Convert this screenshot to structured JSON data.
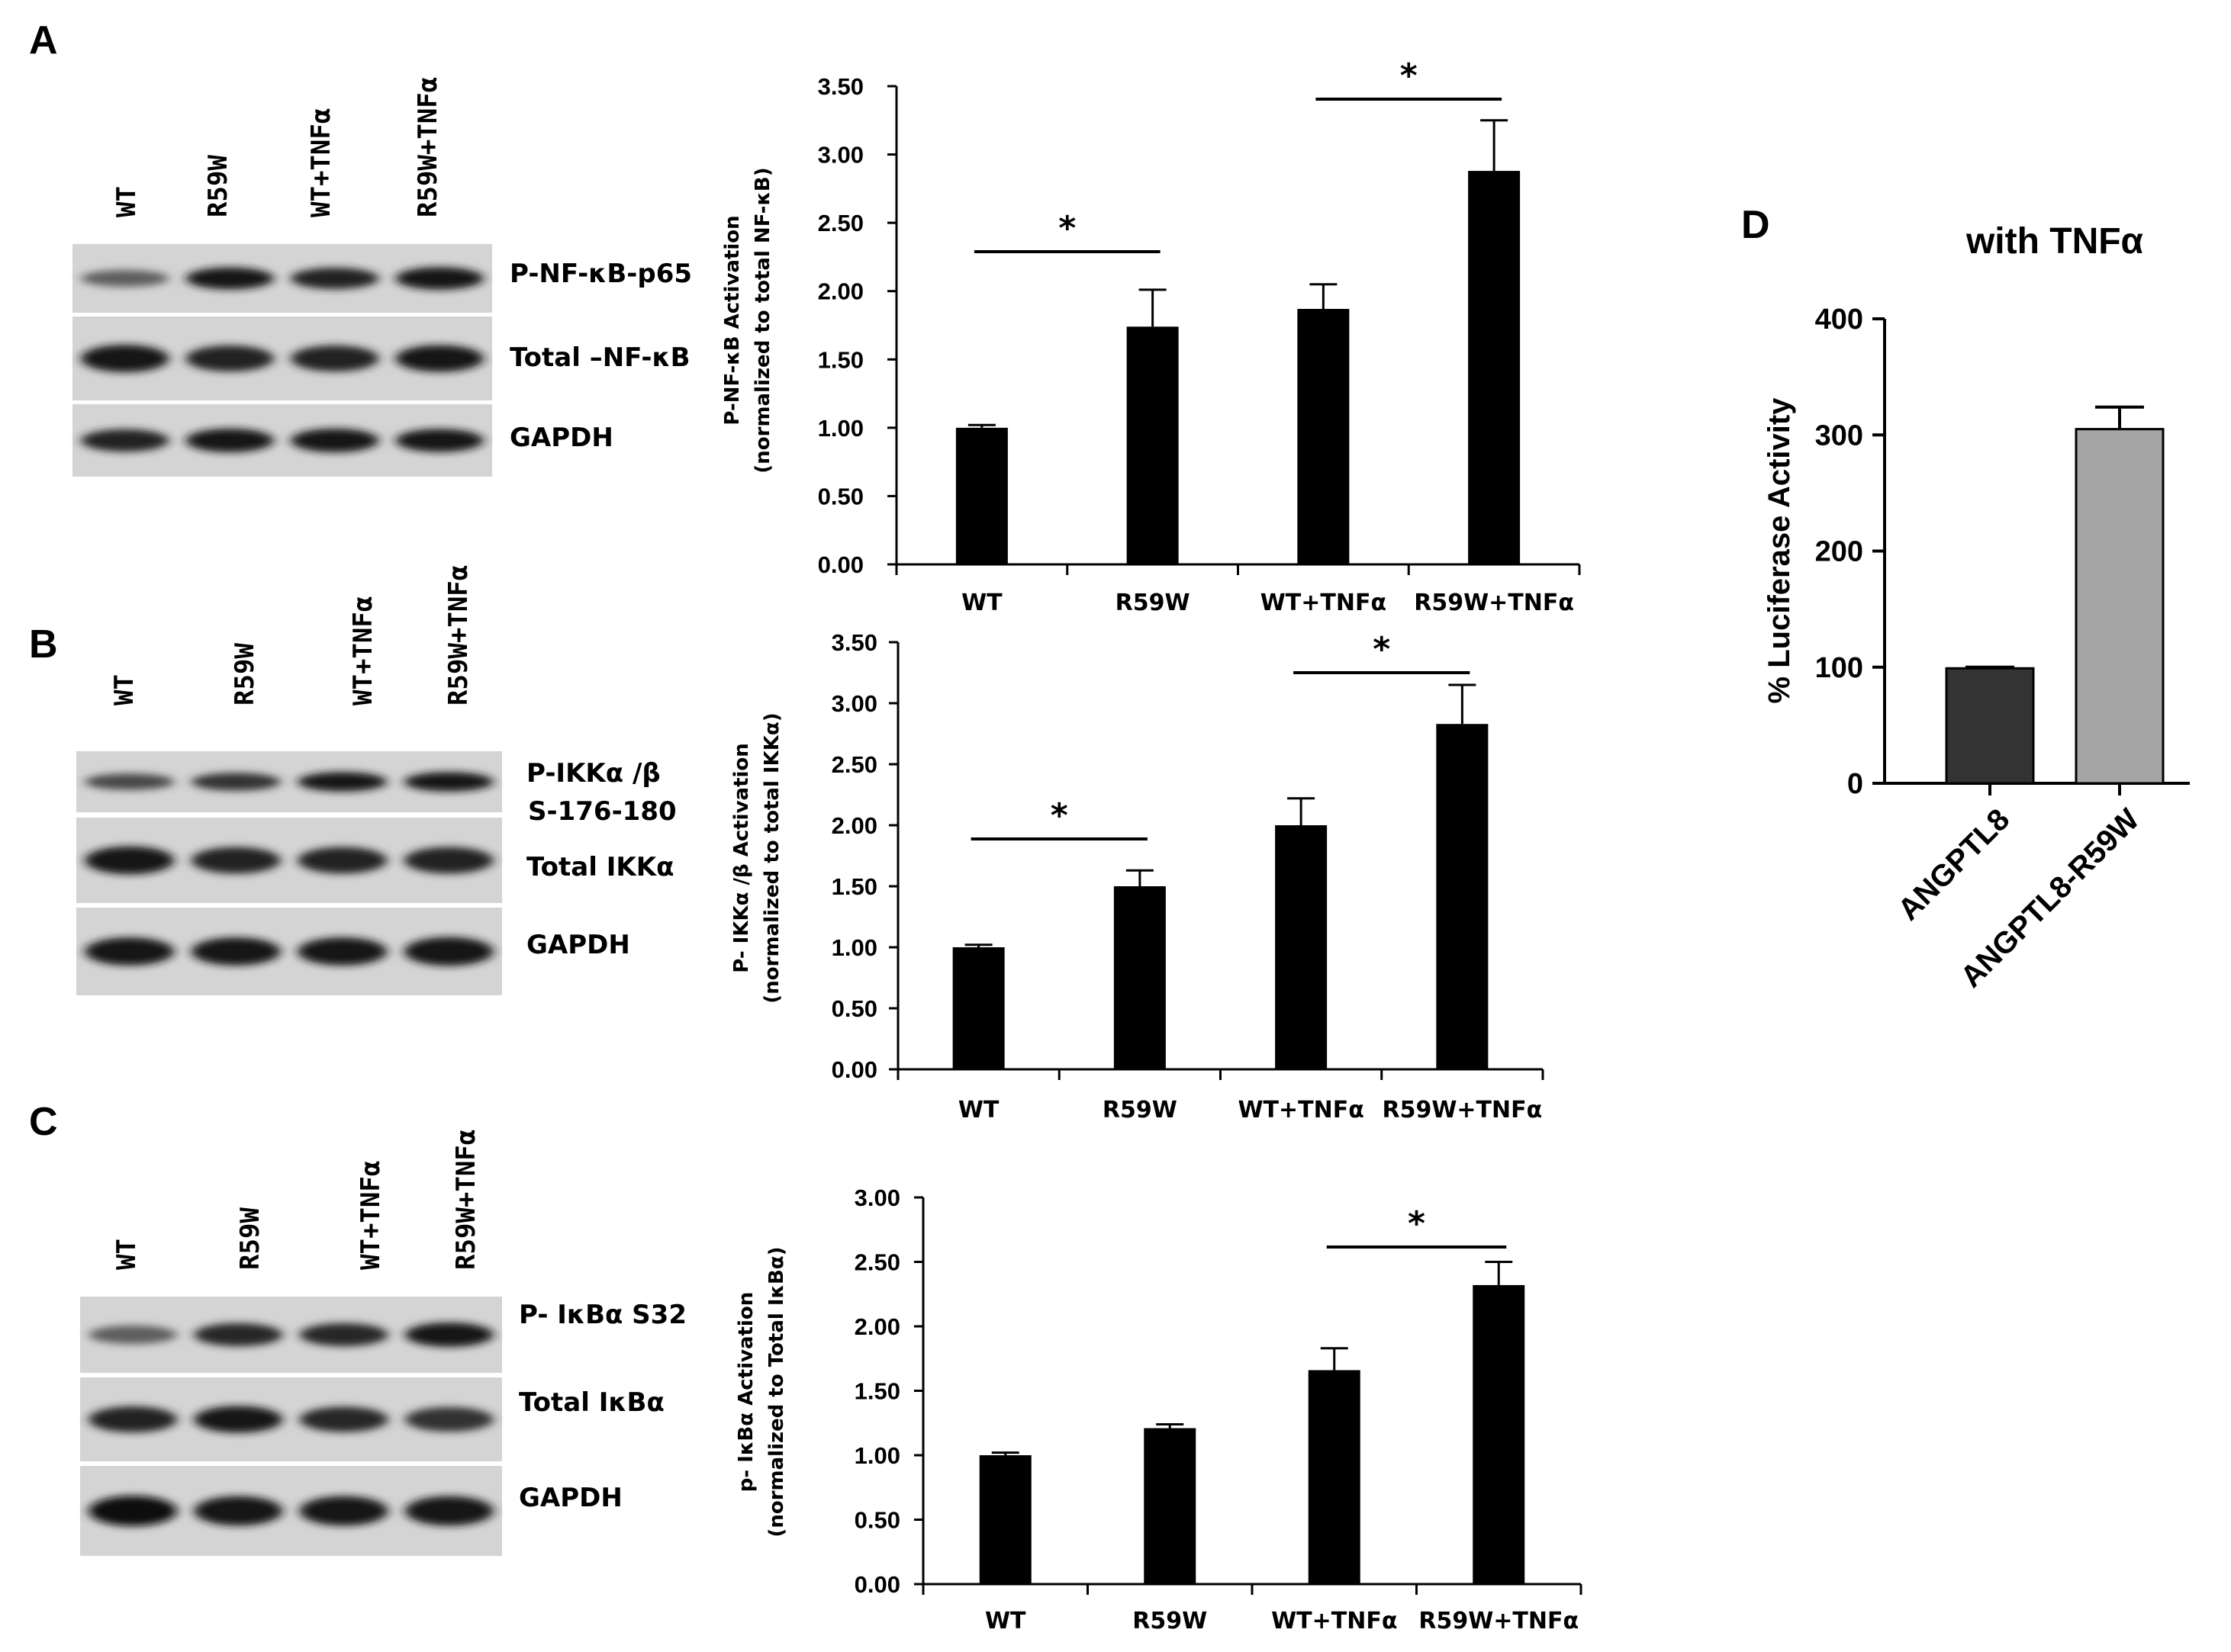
{
  "panels": [
    {
      "letter": "A",
      "blot": {
        "lanes": [
          "WT",
          "R59W",
          "WT+TNFα",
          "R59W+TNFα"
        ],
        "bands": [
          {
            "label": "P-NF-κB-p65",
            "intensity": [
              0.45,
              0.9,
              0.85,
              0.95
            ]
          },
          {
            "label": "Total –NF-κB",
            "intensity": [
              0.95,
              0.85,
              0.85,
              0.9
            ]
          },
          {
            "label": "GAPDH",
            "intensity": [
              0.85,
              0.95,
              0.95,
              0.9
            ]
          }
        ]
      }
    },
    {
      "letter": "B",
      "blot": {
        "lanes": [
          "WT",
          "R59W",
          "WT+TNFα",
          "R59W+TNFα"
        ],
        "bands": [
          {
            "label": "P-IKKα /β",
            "label2": "S-176-180",
            "intensity": [
              0.6,
              0.75,
              0.9,
              0.9
            ]
          },
          {
            "label": "Total IKKα",
            "intensity": [
              0.95,
              0.85,
              0.85,
              0.85
            ]
          },
          {
            "label": "GAPDH",
            "intensity": [
              0.9,
              0.9,
              0.9,
              0.95
            ]
          }
        ]
      }
    },
    {
      "letter": "C",
      "blot": {
        "lanes": [
          "WT",
          "R59W",
          "WT+TNFα",
          "R59W+TNFα"
        ],
        "bands": [
          {
            "label": "P- IκBα S32",
            "intensity": [
              0.45,
              0.8,
              0.8,
              0.9
            ]
          },
          {
            "label": "Total IκBα",
            "intensity": [
              0.85,
              0.9,
              0.8,
              0.75
            ]
          },
          {
            "label": "GAPDH",
            "intensity": [
              1.0,
              0.95,
              0.95,
              0.95
            ]
          }
        ]
      }
    },
    {
      "letter": "D"
    }
  ],
  "chart_data": [
    {
      "panel": "A",
      "type": "bar",
      "categories": [
        "WT",
        "R59W",
        "WT+TNFα",
        "R59W+TNFα"
      ],
      "values": [
        1.0,
        1.74,
        1.87,
        2.88
      ],
      "errors": [
        0.02,
        0.27,
        0.18,
        0.37
      ],
      "ylabel": "P-NF-κB Activation",
      "ylabel2": "(normalized to total NF-κB)",
      "ylim": [
        0,
        3.5
      ],
      "yticks": [
        "0.00",
        "0.50",
        "1.00",
        "1.50",
        "2.00",
        "2.50",
        "3.00",
        "3.50"
      ],
      "significance": [
        {
          "from": 0,
          "to": 1,
          "label": "*"
        },
        {
          "from": 2,
          "to": 3,
          "label": "*"
        }
      ]
    },
    {
      "panel": "B",
      "type": "bar",
      "categories": [
        "WT",
        "R59W",
        "WT+TNFα",
        "R59W+TNFα"
      ],
      "values": [
        1.0,
        1.5,
        2.0,
        2.83
      ],
      "errors": [
        0.02,
        0.13,
        0.22,
        0.32
      ],
      "ylabel": "P- IKKα /β Activation",
      "ylabel2": "(normalized to total IKKα)",
      "ylim": [
        0,
        3.5
      ],
      "yticks": [
        "0.00",
        "0.50",
        "1.00",
        "1.50",
        "2.00",
        "2.50",
        "3.00",
        "3.50"
      ],
      "significance": [
        {
          "from": 0,
          "to": 1,
          "label": "*"
        },
        {
          "from": 2,
          "to": 3,
          "label": "*"
        }
      ]
    },
    {
      "panel": "C",
      "type": "bar",
      "categories": [
        "WT",
        "R59W",
        "WT+TNFα",
        "R59W+TNFα"
      ],
      "values": [
        1.0,
        1.21,
        1.66,
        2.32
      ],
      "errors": [
        0.02,
        0.03,
        0.17,
        0.18
      ],
      "ylabel": "p- IκBα Activation",
      "ylabel2": "(normalized to Total IκBα)",
      "ylim": [
        0,
        3.0
      ],
      "yticks": [
        "0.00",
        "0.50",
        "1.00",
        "1.50",
        "2.00",
        "2.50",
        "3.00"
      ],
      "significance": [
        {
          "from": 2,
          "to": 3,
          "label": "*"
        }
      ]
    },
    {
      "panel": "D",
      "type": "bar",
      "title": "with TNFα",
      "categories": [
        "ANGPTL8",
        "ANGPTL8-R59W"
      ],
      "values": [
        99,
        305
      ],
      "errors": [
        1,
        19
      ],
      "colors": [
        "#333333",
        "#a6a6a6"
      ],
      "ylabel": "% Luciferase Activity",
      "ylim": [
        0,
        400
      ],
      "yticks": [
        "0",
        "100",
        "200",
        "300",
        "400"
      ]
    }
  ]
}
